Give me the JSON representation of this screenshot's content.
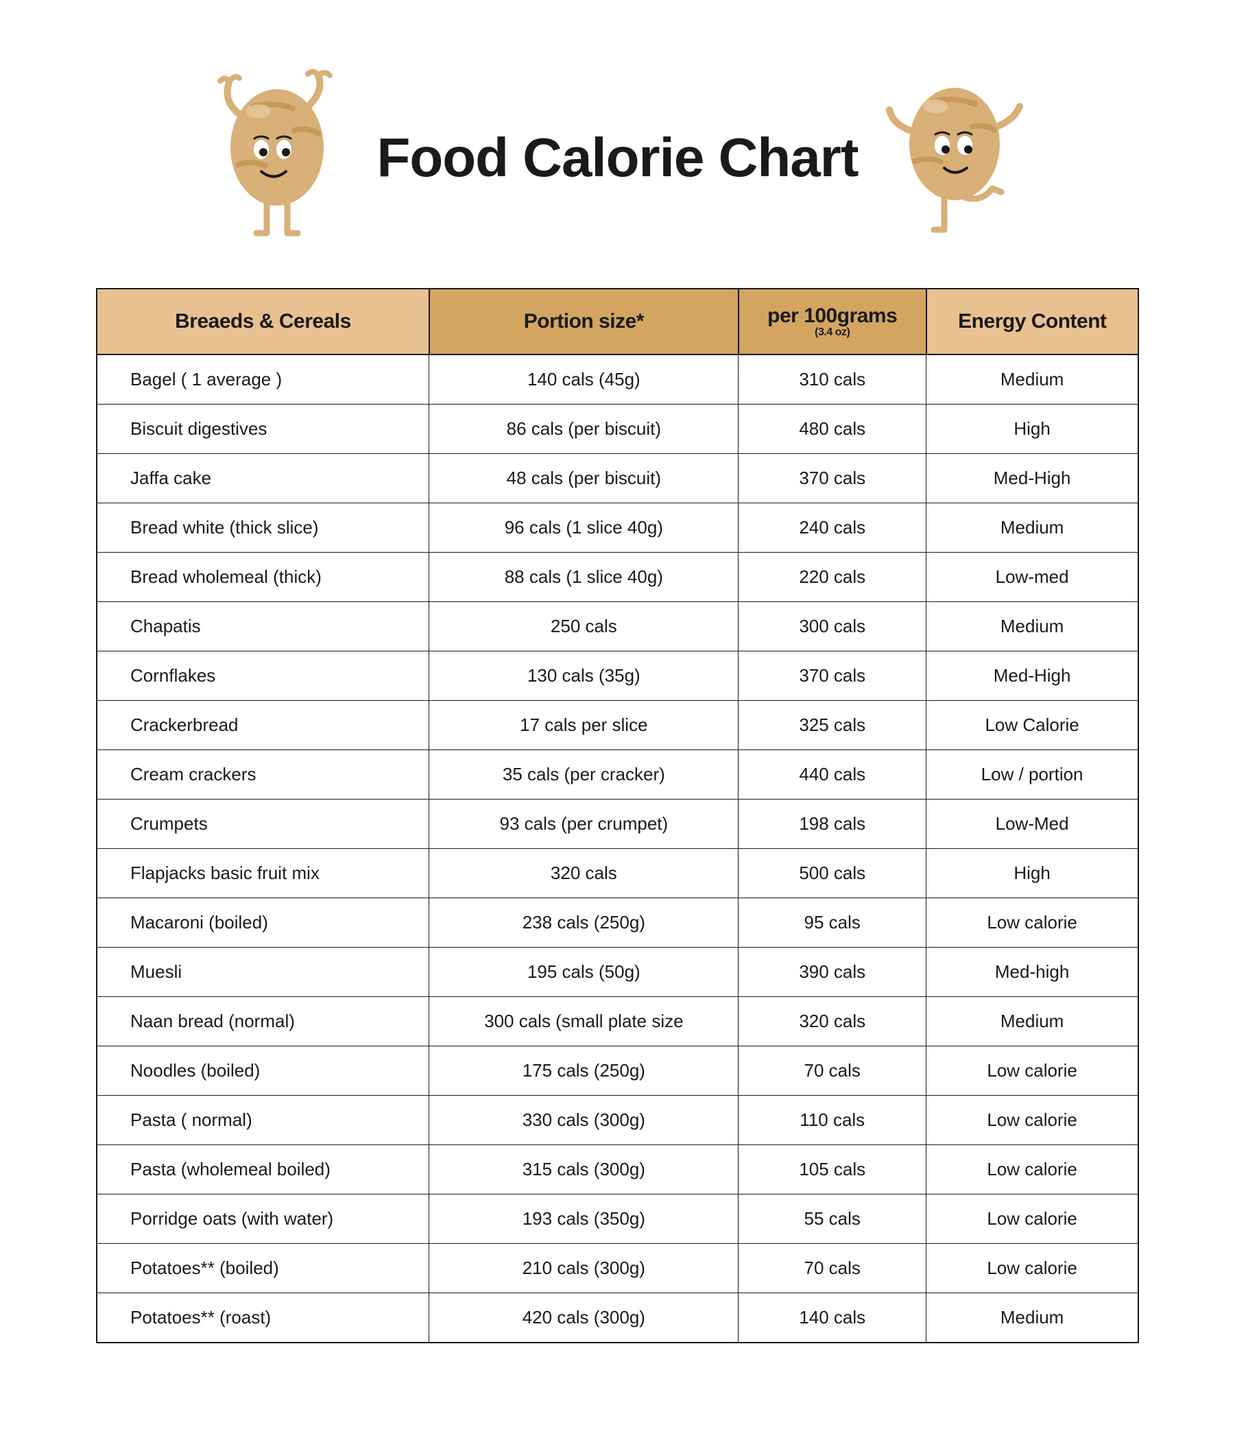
{
  "title": "Food Calorie Chart",
  "header_colors": {
    "col0": "#e8c190",
    "col1": "#d3a561",
    "col2": "#d3a561",
    "col3": "#e8c190"
  },
  "potato_color": "#d8b078",
  "potato_stripe": "#c89a5a",
  "columns": [
    {
      "label": "Breaeds & Cereals",
      "sub": ""
    },
    {
      "label": "Portion size*",
      "sub": ""
    },
    {
      "label": "per 100grams",
      "sub": "(3.4 oz)"
    },
    {
      "label": "Energy Content",
      "sub": ""
    }
  ],
  "rows": [
    {
      "food": "Bagel ( 1 average )",
      "portion": "140 cals (45g)",
      "per100": "310 cals",
      "energy": "Medium"
    },
    {
      "food": "Biscuit digestives",
      "portion": "86 cals (per biscuit)",
      "per100": "480 cals",
      "energy": "High"
    },
    {
      "food": "Jaffa cake",
      "portion": "48 cals (per biscuit)",
      "per100": "370 cals",
      "energy": "Med-High"
    },
    {
      "food": "Bread white (thick slice)",
      "portion": "96 cals (1 slice 40g)",
      "per100": "240 cals",
      "energy": "Medium"
    },
    {
      "food": "Bread wholemeal (thick)",
      "portion": "88 cals (1 slice 40g)",
      "per100": "220 cals",
      "energy": "Low-med"
    },
    {
      "food": "Chapatis",
      "portion": "250 cals",
      "per100": "300 cals",
      "energy": "Medium"
    },
    {
      "food": "Cornflakes",
      "portion": "130 cals (35g)",
      "per100": "370 cals",
      "energy": "Med-High"
    },
    {
      "food": "Crackerbread",
      "portion": "17 cals per slice",
      "per100": "325 cals",
      "energy": "Low Calorie"
    },
    {
      "food": "Cream crackers",
      "portion": "35 cals (per cracker)",
      "per100": "440 cals",
      "energy": "Low / portion"
    },
    {
      "food": "Crumpets",
      "portion": "93 cals (per crumpet)",
      "per100": "198 cals",
      "energy": "Low-Med"
    },
    {
      "food": "Flapjacks basic fruit mix",
      "portion": "320 cals",
      "per100": "500 cals",
      "energy": "High"
    },
    {
      "food": "Macaroni (boiled)",
      "portion": "238 cals (250g)",
      "per100": "95 cals",
      "energy": "Low calorie"
    },
    {
      "food": "Muesli",
      "portion": "195 cals (50g)",
      "per100": "390 cals",
      "energy": "Med-high"
    },
    {
      "food": "Naan bread (normal)",
      "portion": "300 cals (small plate size",
      "per100": "320 cals",
      "energy": "Medium"
    },
    {
      "food": "Noodles (boiled)",
      "portion": "175 cals (250g)",
      "per100": "70 cals",
      "energy": "Low calorie"
    },
    {
      "food": "Pasta ( normal)",
      "portion": "330 cals (300g)",
      "per100": "110 cals",
      "energy": "Low calorie"
    },
    {
      "food": "Pasta (wholemeal boiled)",
      "portion": "315 cals (300g)",
      "per100": "105 cals",
      "energy": "Low calorie"
    },
    {
      "food": "Porridge oats (with water)",
      "portion": "193 cals (350g)",
      "per100": "55 cals",
      "energy": "Low calorie"
    },
    {
      "food": "Potatoes** (boiled)",
      "portion": "210 cals (300g)",
      "per100": "70 cals",
      "energy": "Low calorie"
    },
    {
      "food": "Potatoes** (roast)",
      "portion": "420 cals (300g)",
      "per100": "140 cals",
      "energy": "Medium"
    }
  ]
}
